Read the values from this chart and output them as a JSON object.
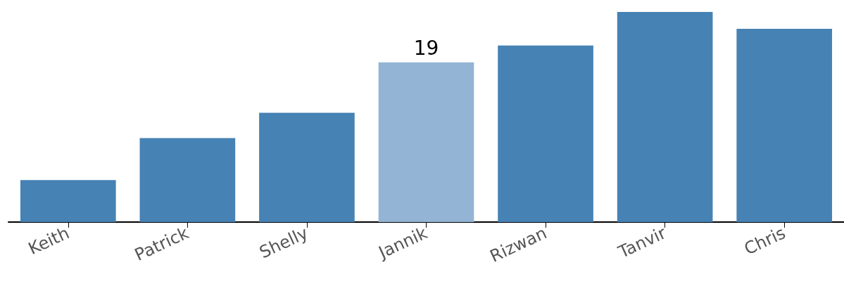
{
  "chart_data": {
    "type": "bar",
    "categories": [
      "Keith",
      "Patrick",
      "Shelly",
      "Jannik",
      "Rizwan",
      "Tanvir",
      "Chris"
    ],
    "values": [
      5,
      10,
      13,
      19,
      21,
      25,
      23
    ],
    "colors": [
      "#4682b4",
      "#4682b4",
      "#4682b4",
      "#93b4d4",
      "#4682b4",
      "#4682b4",
      "#4682b4"
    ],
    "value_labels": [
      null,
      null,
      null,
      "19",
      null,
      null,
      null
    ]
  }
}
